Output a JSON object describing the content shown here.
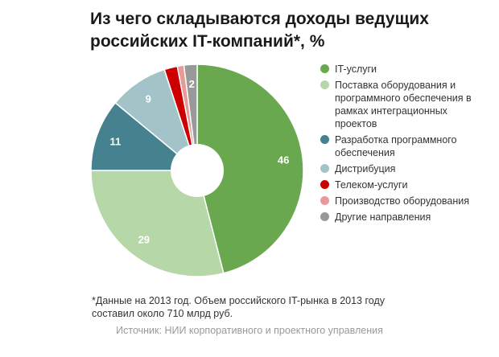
{
  "title": "Из чего складываются доходы ведущих российских IT-компаний*, %",
  "footnote": "*Данные на 2013 год. Объем российского IT-рынка в 2013 году составил около 710 млрд руб.",
  "source": "Источник: НИИ корпоративного и проектного управления",
  "chart_data": {
    "type": "pie",
    "donut": true,
    "start_angle_deg": 0,
    "direction": "clockwise",
    "legend_position": "right",
    "series": [
      {
        "name": "IT-услуги",
        "value": 46,
        "label": "46",
        "color": "#6aa84f"
      },
      {
        "name": "Поставка оборудования и программного обеспечения в рамках интеграционных проектов",
        "value": 29,
        "label": "29",
        "color": "#b6d7a8"
      },
      {
        "name": "Разработка программного обеспечения",
        "value": 11,
        "label": "11",
        "color": "#45818e"
      },
      {
        "name": "Дистрибуция",
        "value": 9,
        "label": "9",
        "color": "#a2c4c9"
      },
      {
        "name": "Телеком-услуги",
        "value": 2,
        "label": "",
        "color": "#cc0000"
      },
      {
        "name": "Производство оборудования",
        "value": 1,
        "label": "",
        "color": "#ea9999"
      },
      {
        "name": "Другие направления",
        "value": 2,
        "label": "2",
        "color": "#999999"
      }
    ]
  }
}
